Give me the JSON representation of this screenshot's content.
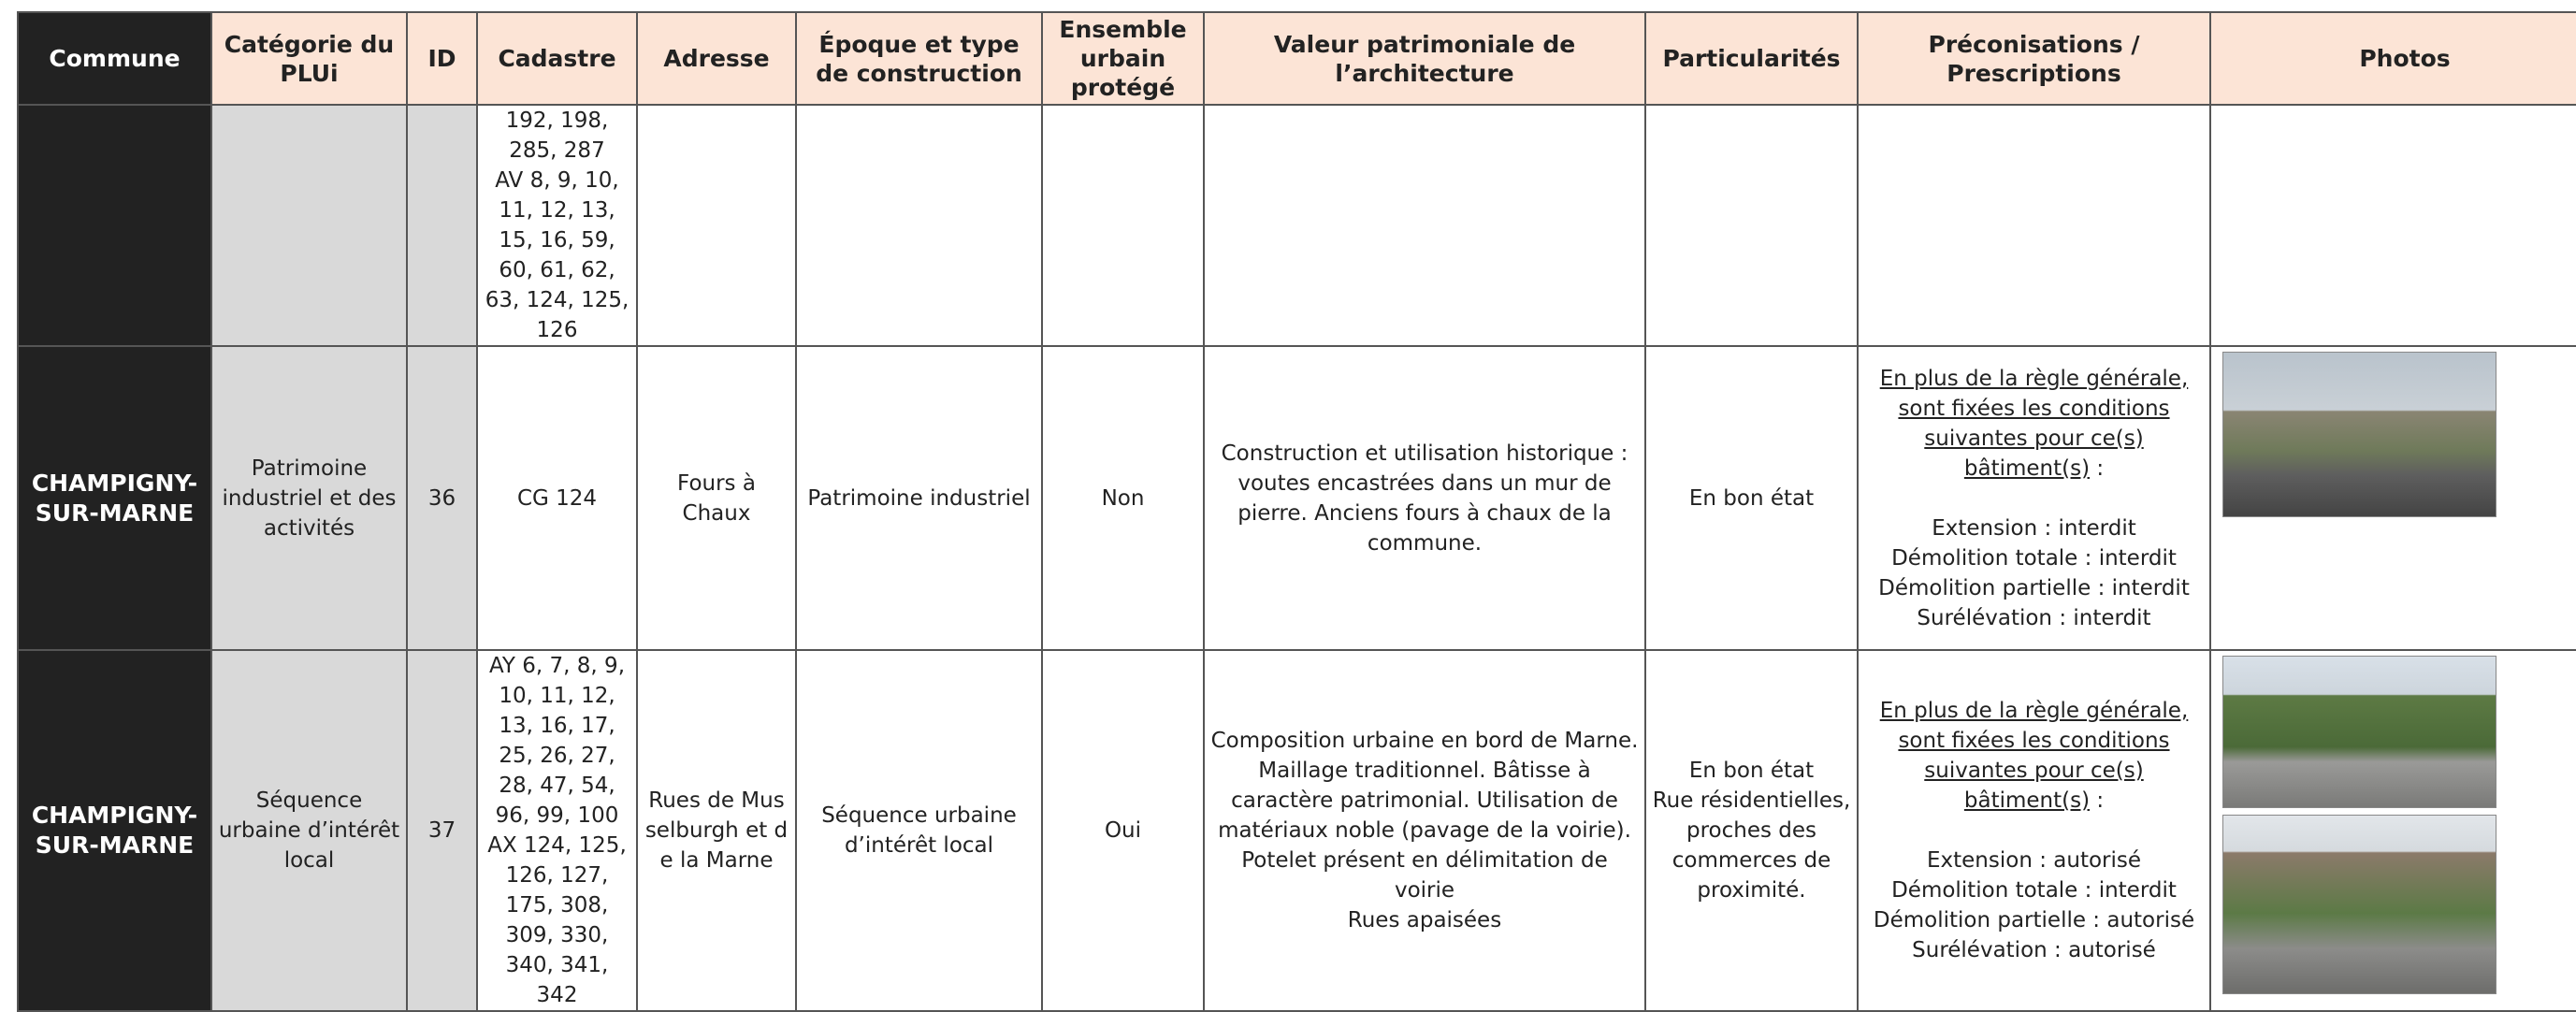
{
  "header": {
    "columns": [
      "Commune",
      "Catégorie du PLUi",
      "ID",
      "Cadastre",
      "Adresse",
      "Époque et type de construction",
      "Ensemble urbain protégé",
      "Valeur patrimoniale de l’architecture",
      "Particularités",
      "Préconisations / Prescriptions",
      "Photos"
    ]
  },
  "table": {
    "rows": [
      {
        "cadastre": [
          "192, 198, 285, 287",
          "AV 8, 9, 10, 11, 12, 13, 15, 16, 59, 60, 61, 62, 63, 124, 125, 126"
        ]
      },
      {
        "commune": "CHAMPIGNY-SUR-MARNE",
        "categorie": "Patrimoine industriel et des activités",
        "id": "36",
        "cadastre": [
          "CG 124"
        ],
        "adresse": "Fours à Chaux",
        "epoque": "Patrimoine industriel",
        "ensemble": "Non",
        "valeur": [
          "Construction et utilisation historique : voutes encastrées dans un mur de pierre. Anciens fours à chaux de la commune."
        ],
        "particularites": [
          "En bon état"
        ],
        "preconisations": {
          "intro": "En plus de la règle générale, sont fixées les conditions suivantes pour ce(s) bâtiment(s)",
          "sep": " :",
          "items": [
            "Extension : interdit",
            "Démolition totale : interdit",
            "Démolition partielle : interdit",
            "Surélévation : interdit"
          ]
        }
      },
      {
        "commune": "CHAMPIGNY-SUR-MARNE",
        "categorie": "Séquence urbaine d’intérêt local",
        "id": "37",
        "cadastre": [
          "AY 6, 7, 8, 9, 10, 11, 12, 13, 16, 17, 25, 26, 27, 28, 47, 54, 96, 99, 100",
          "AX 124, 125, 126, 127, 175, 308, 309, 330, 340, 341, 342"
        ],
        "adresse": "Rues de Musselburgh et de la Marne",
        "epoque": "Séquence urbaine d’intérêt local",
        "ensemble": "Oui",
        "valeur": [
          "Composition urbaine en bord de Marne. Maillage traditionnel. Bâtisse à caractère patrimonial. Utilisation de matériaux noble (pavage de la voirie). Potelet présent en délimitation de voirie",
          "Rues apaisées"
        ],
        "particularites": [
          "En bon état",
          "Rue résidentielles, proches des commerces de proximité."
        ],
        "preconisations": {
          "intro": "En plus de la règle générale, sont fixées les conditions suivantes pour ce(s) bâtiment(s)",
          "sep": " :",
          "items": [
            "Extension : autorisé",
            "Démolition totale : interdit",
            "Démolition partielle : autorisé",
            "Surélévation : autorisé"
          ]
        }
      }
    ]
  }
}
